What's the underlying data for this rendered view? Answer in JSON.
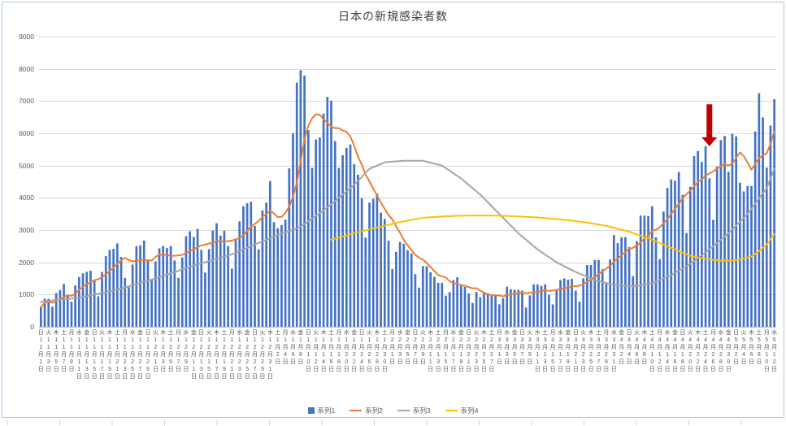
{
  "frame": {
    "border_color": "#AAC7E2",
    "tick_color": "#C9D3DF"
  },
  "chart_data": {
    "type": "combo",
    "title": "日本の新規感染者数",
    "xlabel": "",
    "ylabel": "",
    "ylim": [
      0,
      9000
    ],
    "ytick_interval": 1000,
    "yticks": [
      0,
      1000,
      2000,
      3000,
      4000,
      5000,
      6000,
      7000,
      8000,
      9000
    ],
    "grid": true,
    "legend_position": "bottom",
    "x_unit": "day",
    "x_label_every_n_days": 2,
    "x_labels": [
      [
        "日",
        11,
        1
      ],
      [
        "火",
        11,
        3
      ],
      [
        "木",
        11,
        5
      ],
      [
        "土",
        11,
        7
      ],
      [
        "月",
        11,
        9
      ],
      [
        "水",
        11,
        11
      ],
      [
        "金",
        11,
        13
      ],
      [
        "日",
        11,
        15
      ],
      [
        "火",
        11,
        17
      ],
      [
        "木",
        11,
        19
      ],
      [
        "土",
        11,
        21
      ],
      [
        "月",
        11,
        23
      ],
      [
        "水",
        11,
        25
      ],
      [
        "金",
        11,
        27
      ],
      [
        "日",
        11,
        29
      ],
      [
        "火",
        12,
        1
      ],
      [
        "木",
        12,
        3
      ],
      [
        "土",
        12,
        5
      ],
      [
        "月",
        12,
        7
      ],
      [
        "水",
        12,
        9
      ],
      [
        "金",
        12,
        11
      ],
      [
        "日",
        12,
        13
      ],
      [
        "火",
        12,
        15
      ],
      [
        "木",
        12,
        17
      ],
      [
        "土",
        12,
        19
      ],
      [
        "月",
        12,
        21
      ],
      [
        "水",
        12,
        23
      ],
      [
        "金",
        12,
        25
      ],
      [
        "日",
        12,
        27
      ],
      [
        "火",
        12,
        29
      ],
      [
        "木",
        12,
        31
      ],
      [
        "土",
        1,
        2
      ],
      [
        "月",
        1,
        4
      ],
      [
        "水",
        1,
        6
      ],
      [
        "金",
        1,
        8
      ],
      [
        "日",
        1,
        10
      ],
      [
        "火",
        1,
        12
      ],
      [
        "木",
        1,
        14
      ],
      [
        "土",
        1,
        16
      ],
      [
        "月",
        1,
        18
      ],
      [
        "水",
        1,
        20
      ],
      [
        "金",
        1,
        22
      ],
      [
        "日",
        1,
        24
      ],
      [
        "火",
        1,
        26
      ],
      [
        "木",
        1,
        28
      ],
      [
        "土",
        1,
        30
      ],
      [
        "月",
        2,
        1
      ],
      [
        "水",
        2,
        3
      ],
      [
        "金",
        2,
        5
      ],
      [
        "日",
        2,
        7
      ],
      [
        "火",
        2,
        9
      ],
      [
        "木",
        2,
        11
      ],
      [
        "土",
        2,
        13
      ],
      [
        "月",
        2,
        15
      ],
      [
        "水",
        2,
        17
      ],
      [
        "金",
        2,
        19
      ],
      [
        "日",
        2,
        21
      ],
      [
        "火",
        2,
        23
      ],
      [
        "木",
        2,
        25
      ],
      [
        "土",
        2,
        27
      ],
      [
        "月",
        3,
        1
      ],
      [
        "水",
        3,
        3
      ],
      [
        "金",
        3,
        5
      ],
      [
        "日",
        3,
        7
      ],
      [
        "火",
        3,
        9
      ],
      [
        "木",
        3,
        11
      ],
      [
        "土",
        3,
        13
      ],
      [
        "月",
        3,
        15
      ],
      [
        "水",
        3,
        17
      ],
      [
        "金",
        3,
        19
      ],
      [
        "日",
        3,
        21
      ],
      [
        "火",
        3,
        23
      ],
      [
        "木",
        3,
        25
      ],
      [
        "土",
        3,
        27
      ],
      [
        "月",
        3,
        29
      ],
      [
        "水",
        3,
        31
      ],
      [
        "金",
        4,
        2
      ],
      [
        "日",
        4,
        4
      ],
      [
        "火",
        4,
        6
      ],
      [
        "木",
        4,
        8
      ],
      [
        "土",
        4,
        10
      ],
      [
        "月",
        4,
        12
      ],
      [
        "水",
        4,
        14
      ],
      [
        "金",
        4,
        16
      ],
      [
        "日",
        4,
        18
      ],
      [
        "火",
        4,
        20
      ],
      [
        "木",
        4,
        22
      ],
      [
        "土",
        4,
        24
      ],
      [
        "月",
        4,
        26
      ],
      [
        "水",
        4,
        28
      ],
      [
        "金",
        4,
        30
      ],
      [
        "日",
        5,
        2
      ],
      [
        "火",
        5,
        4
      ],
      [
        "木",
        5,
        6
      ],
      [
        "土",
        5,
        8
      ],
      [
        "月",
        5,
        10
      ],
      [
        "水",
        5,
        12
      ]
    ],
    "series": [
      {
        "name": "系列1",
        "type": "bar",
        "color": "#4472C4",
        "values": [
          614,
          871,
          867,
          620,
          1050,
          1141,
          1331,
          947,
          780,
          1284,
          1543,
          1661,
          1705,
          1737,
          1440,
          950,
          1699,
          2191,
          2386,
          2418,
          2588,
          2168,
          1515,
          1229,
          1930,
          2501,
          2525,
          2674,
          2066,
          1438,
          2030,
          2434,
          2508,
          2442,
          2508,
          2058,
          1516,
          2152,
          2811,
          2963,
          2790,
          3041,
          2388,
          1680,
          2410,
          2987,
          3211,
          2829,
          2982,
          2501,
          1806,
          2688,
          3271,
          3742,
          3832,
          3881,
          3127,
          2403,
          3607,
          3852,
          4520,
          3246,
          3059,
          3158,
          3325,
          4915,
          6004,
          7570,
          7958,
          7790,
          6097,
          4925,
          5807,
          5870,
          6610,
          7133,
          7014,
          5759,
          4925,
          5320,
          5549,
          5653,
          5045,
          4717,
          3990,
          2764,
          3853,
          3971,
          4133,
          3539,
          3344,
          2673,
          1791,
          2324,
          2631,
          2576,
          2372,
          2279,
          1631,
          1216,
          1887,
          1882,
          1693,
          1552,
          1362,
          1364,
          965,
          1076,
          1448,
          1536,
          1301,
          1234,
          1032,
          739,
          1083,
          919,
          1076,
          1032,
          999,
          999,
          697,
          888,
          1244,
          1168,
          1148,
          1144,
          1121,
          599,
          972,
          1317,
          1316,
          1271,
          1320,
          989,
          695,
          1133,
          1449,
          1500,
          1463,
          1490,
          1121,
          781,
          1504,
          1917,
          1918,
          2070,
          2076,
          1785,
          1354,
          2087,
          2843,
          2597,
          2778,
          2783,
          2472,
          1571,
          2653,
          3449,
          3448,
          3435,
          3740,
          2777,
          2097,
          3574,
          4309,
          4571,
          4532,
          4801,
          4093,
          2908,
          4342,
          5292,
          5452,
          5113,
          5605,
          4605,
          3318,
          4965,
          5792,
          5918,
          4808,
          5986,
          5907,
          4470,
          4199,
          4366,
          4365,
          6058,
          7244,
          6493,
          4936,
          6243,
          7057
        ]
      },
      {
        "name": "系列2",
        "type": "line",
        "color": "#ED7D31",
        "values": [
          614,
          743,
          784,
          743,
          804,
          861,
          928,
          975,
          962,
          1022,
          1154,
          1241,
          1322,
          1380,
          1450,
          1474,
          1534,
          1626,
          1730,
          1832,
          1953,
          2057,
          2138,
          2071,
          2033,
          2050,
          2065,
          2077,
          2063,
          2052,
          2166,
          2238,
          2239,
          2227,
          2204,
          2203,
          2214,
          2231,
          2285,
          2350,
          2400,
          2476,
          2523,
          2546,
          2583,
          2608,
          2644,
          2649,
          2641,
          2657,
          2675,
          2715,
          2755,
          2831,
          2975,
          3103,
          3192,
          3278,
          3409,
          3492,
          3603,
          3519,
          3402,
          3406,
          3538,
          3725,
          4032,
          4468,
          5141,
          5817,
          6237,
          6466,
          6593,
          6574,
          6437,
          6319,
          6208,
          6160,
          6160,
          6090,
          6044,
          5908,
          5609,
          5281,
          5028,
          4720,
          4510,
          4285,
          4068,
          3852,
          3656,
          3468,
          3329,
          3111,
          2919,
          2697,
          2530,
          2378,
          2229,
          2147,
          2085,
          1978,
          1851,
          1734,
          1603,
          1565,
          1529,
          1413,
          1351,
          1329,
          1293,
          1275,
          1227,
          1195,
          1196,
          1121,
          1055,
          1016,
          983,
          978,
          972,
          944,
          991,
          1004,
          1020,
          1041,
          1059,
          1045,
          1057,
          1067,
          1088,
          1106,
          1131,
          1112,
          1126,
          1149,
          1168,
          1194,
          1221,
          1246,
          1264,
          1277,
          1330,
          1397,
          1456,
          1543,
          1627,
          1722,
          1803,
          1887,
          2019,
          2116,
          2217,
          2318,
          2416,
          2447,
          2528,
          2615,
          2736,
          2830,
          2967,
          3010,
          3086,
          3217,
          3340,
          3500,
          3657,
          3809,
          3997,
          4113,
          4222,
          4363,
          4489,
          4572,
          4686,
          4760,
          4818,
          4907,
          4979,
          5045,
          5002,
          5056,
          5242,
          5407,
          5297,
          5093,
          4872,
          5050,
          5230,
          5314,
          5380,
          5672,
          6057
        ]
      },
      {
        "name": "系列3",
        "type": "line",
        "color": "#A5A5A5",
        "values": [
          780,
          792,
          804,
          816,
          828,
          840,
          852,
          864,
          876,
          888,
          900,
          925,
          950,
          975,
          1000,
          1025,
          1050,
          1075,
          1100,
          1125,
          1150,
          1185,
          1220,
          1255,
          1290,
          1325,
          1360,
          1395,
          1430,
          1465,
          1500,
          1540,
          1580,
          1620,
          1660,
          1700,
          1740,
          1780,
          1820,
          1860,
          1900,
          1935,
          1970,
          2005,
          2040,
          2075,
          2110,
          2145,
          2180,
          2215,
          2250,
          2300,
          2350,
          2400,
          2450,
          2500,
          2550,
          2600,
          2650,
          2700,
          2750,
          2800,
          2843,
          2886,
          2929,
          2971,
          3014,
          3057,
          3100,
          3186,
          3271,
          3357,
          3443,
          3529,
          3614,
          3700,
          3800,
          3900,
          4000,
          4100,
          4200,
          4300,
          4400,
          4525,
          4650,
          4775,
          4900,
          4950,
          5000,
          5050,
          5100,
          5110,
          5120,
          5130,
          5140,
          5150,
          5150,
          5150,
          5150,
          5150,
          5150,
          5120,
          5090,
          5060,
          5030,
          5000,
          4920,
          4840,
          4760,
          4680,
          4600,
          4500,
          4400,
          4300,
          4200,
          4100,
          3980,
          3860,
          3740,
          3620,
          3500,
          3380,
          3260,
          3140,
          3020,
          2900,
          2800,
          2700,
          2600,
          2500,
          2400,
          2320,
          2240,
          2160,
          2080,
          2000,
          1940,
          1880,
          1820,
          1760,
          1700,
          1650,
          1600,
          1550,
          1500,
          1450,
          1420,
          1390,
          1360,
          1330,
          1300,
          1290,
          1280,
          1270,
          1260,
          1250,
          1270,
          1290,
          1310,
          1330,
          1350,
          1400,
          1450,
          1500,
          1550,
          1600,
          1670,
          1740,
          1810,
          1880,
          1950,
          2040,
          2130,
          2220,
          2310,
          2400,
          2500,
          2600,
          2700,
          2800,
          2900,
          3020,
          3140,
          3260,
          3380,
          3500,
          3660,
          3820,
          3980,
          4140,
          4300,
          4600,
          4900
        ]
      },
      {
        "name": "系列4",
        "type": "line",
        "color": "#FFC000",
        "start_index": 76,
        "values": [
          2700,
          2733,
          2767,
          2800,
          2833,
          2867,
          2900,
          2930,
          2960,
          2990,
          3020,
          3050,
          3080,
          3108,
          3137,
          3165,
          3193,
          3222,
          3250,
          3272,
          3293,
          3315,
          3337,
          3358,
          3380,
          3388,
          3397,
          3405,
          3413,
          3422,
          3430,
          3433,
          3437,
          3440,
          3443,
          3447,
          3450,
          3450,
          3450,
          3450,
          3450,
          3450,
          3450,
          3447,
          3443,
          3440,
          3437,
          3433,
          3430,
          3423,
          3417,
          3410,
          3403,
          3397,
          3390,
          3380,
          3370,
          3360,
          3350,
          3340,
          3330,
          3317,
          3303,
          3290,
          3277,
          3263,
          3250,
          3230,
          3210,
          3190,
          3170,
          3150,
          3130,
          3100,
          3070,
          3040,
          3010,
          2980,
          2950,
          2908,
          2867,
          2825,
          2783,
          2742,
          2700,
          2650,
          2600,
          2550,
          2500,
          2450,
          2400,
          2350,
          2300,
          2250,
          2200,
          2175,
          2150,
          2125,
          2100,
          2088,
          2075,
          2063,
          2050,
          2053,
          2055,
          2058,
          2060,
          2090,
          2120,
          2150,
          2180,
          2265,
          2350,
          2450,
          2550,
          2715,
          2880
        ]
      }
    ],
    "annotations": [
      {
        "shape": "down-arrow",
        "color": "#C00000",
        "day_index": 175,
        "value_top": 6900,
        "value_tip": 5600
      }
    ]
  }
}
